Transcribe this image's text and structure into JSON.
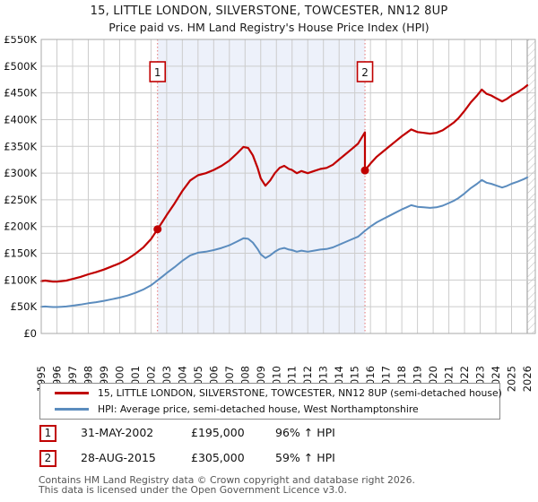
{
  "chart_data": {
    "type": "line",
    "title": "15, LITTLE LONDON, SILVERSTONE, TOWCESTER, NN12 8UP",
    "subtitle": "Price paid vs. HM Land Registry's House Price Index (HPI)",
    "x_axis": {
      "years": [
        1995,
        1996,
        1997,
        1998,
        1999,
        2000,
        2001,
        2002,
        2003,
        2004,
        2005,
        2006,
        2007,
        2008,
        2009,
        2010,
        2011,
        2012,
        2013,
        2014,
        2015,
        2016,
        2017,
        2018,
        2019,
        2020,
        2021,
        2022,
        2023,
        2024,
        2025,
        2026
      ]
    },
    "y_axis": {
      "tick_values": [
        0,
        50,
        100,
        150,
        200,
        250,
        300,
        350,
        400,
        450,
        500,
        550
      ],
      "tick_labels": [
        "£0",
        "£50K",
        "£100K",
        "£150K",
        "£200K",
        "£250K",
        "£300K",
        "£350K",
        "£400K",
        "£450K",
        "£500K",
        "£550K"
      ],
      "unit": "GBP thousands"
    },
    "grid": true,
    "legend_position": "bottom",
    "shaded_span": {
      "from": 2002.42,
      "to": 2015.65,
      "color": "#edf1fa"
    },
    "future_hatch_from": 2026,
    "series": [
      {
        "name": "15, LITTLE LONDON, SILVERSTONE, TOWCESTER, NN12 8UP (semi-detached house)",
        "color": "#c00000",
        "points": [
          [
            1995,
            98
          ],
          [
            1995.25,
            99
          ],
          [
            1995.5,
            98
          ],
          [
            1995.75,
            97
          ],
          [
            1996,
            97
          ],
          [
            1996.3,
            98
          ],
          [
            1996.6,
            99
          ],
          [
            1997,
            101.9
          ],
          [
            1997.5,
            105.8
          ],
          [
            1998,
            110.7
          ],
          [
            1998.5,
            114.7
          ],
          [
            1999,
            119.6
          ],
          [
            1999.5,
            125.4
          ],
          [
            2000,
            131.3
          ],
          [
            2000.5,
            139.2
          ],
          [
            2001,
            149
          ],
          [
            2001.5,
            160.7
          ],
          [
            2002,
            176.4
          ],
          [
            2002.42,
            195
          ],
          [
            2002.75,
            209.7
          ],
          [
            2003,
            221.5
          ],
          [
            2003.5,
            243
          ],
          [
            2004,
            266.6
          ],
          [
            2004.5,
            286.2
          ],
          [
            2005,
            296
          ],
          [
            2005.5,
            299.9
          ],
          [
            2006,
            305.8
          ],
          [
            2006.5,
            313.6
          ],
          [
            2007,
            323.4
          ],
          [
            2007.5,
            337.1
          ],
          [
            2007.9,
            348.9
          ],
          [
            2008.2,
            346.9
          ],
          [
            2008.5,
            333.2
          ],
          [
            2008.8,
            309.7
          ],
          [
            2009,
            290.1
          ],
          [
            2009.3,
            276.4
          ],
          [
            2009.6,
            286.2
          ],
          [
            2009.9,
            299.9
          ],
          [
            2010.2,
            309.7
          ],
          [
            2010.5,
            313.6
          ],
          [
            2010.8,
            307.7
          ],
          [
            2011,
            305.8
          ],
          [
            2011.3,
            299.9
          ],
          [
            2011.6,
            303.8
          ],
          [
            2012,
            299.9
          ],
          [
            2012.4,
            303.8
          ],
          [
            2012.8,
            307.7
          ],
          [
            2013.2,
            309.7
          ],
          [
            2013.6,
            315.6
          ],
          [
            2014,
            325.4
          ],
          [
            2014.4,
            335.2
          ],
          [
            2014.8,
            345
          ],
          [
            2015.2,
            354.8
          ],
          [
            2015.65,
            376.3
          ],
          [
            2015.65,
            305
          ],
          [
            2016,
            318
          ],
          [
            2016.4,
            330.7
          ],
          [
            2016.8,
            340.3
          ],
          [
            2017.2,
            349.8
          ],
          [
            2017.6,
            359.3
          ],
          [
            2018,
            368.9
          ],
          [
            2018.3,
            375.2
          ],
          [
            2018.6,
            381.6
          ],
          [
            2019,
            376.8
          ],
          [
            2019.4,
            375.2
          ],
          [
            2019.8,
            373.7
          ],
          [
            2020.2,
            375.2
          ],
          [
            2020.6,
            380
          ],
          [
            2021,
            388
          ],
          [
            2021.3,
            394.3
          ],
          [
            2021.6,
            402.3
          ],
          [
            2022,
            416.6
          ],
          [
            2022.4,
            432.5
          ],
          [
            2022.8,
            445.2
          ],
          [
            2023.1,
            456.3
          ],
          [
            2023.4,
            448.4
          ],
          [
            2023.7,
            445.2
          ],
          [
            2024,
            440.4
          ],
          [
            2024.4,
            434.1
          ],
          [
            2024.7,
            438.8
          ],
          [
            2025,
            445.2
          ],
          [
            2025.4,
            451.6
          ],
          [
            2025.8,
            459.5
          ],
          [
            2026,
            464.3
          ]
        ]
      },
      {
        "name": "HPI: Average price, semi-detached house, West Northamptonshire",
        "color": "#5b8cbe",
        "points": [
          [
            1995,
            50
          ],
          [
            1995.25,
            50.5
          ],
          [
            1995.5,
            50
          ],
          [
            1995.75,
            49.5
          ],
          [
            1996,
            49.5
          ],
          [
            1996.3,
            50
          ],
          [
            1996.6,
            50.5
          ],
          [
            1997,
            52
          ],
          [
            1997.5,
            54
          ],
          [
            1998,
            56.5
          ],
          [
            1998.5,
            58.5
          ],
          [
            1999,
            61
          ],
          [
            1999.5,
            64
          ],
          [
            2000,
            67
          ],
          [
            2000.5,
            71
          ],
          [
            2001,
            76
          ],
          [
            2001.5,
            82
          ],
          [
            2002,
            90
          ],
          [
            2002.42,
            99.5
          ],
          [
            2002.75,
            107
          ],
          [
            2003,
            113
          ],
          [
            2003.5,
            124
          ],
          [
            2004,
            136
          ],
          [
            2004.5,
            146
          ],
          [
            2005,
            151
          ],
          [
            2005.5,
            153
          ],
          [
            2006,
            156
          ],
          [
            2006.5,
            160
          ],
          [
            2007,
            165
          ],
          [
            2007.5,
            172
          ],
          [
            2007.9,
            178
          ],
          [
            2008.2,
            177
          ],
          [
            2008.5,
            170
          ],
          [
            2008.8,
            158
          ],
          [
            2009,
            148
          ],
          [
            2009.3,
            141
          ],
          [
            2009.6,
            146
          ],
          [
            2009.9,
            153
          ],
          [
            2010.2,
            158
          ],
          [
            2010.5,
            160
          ],
          [
            2010.8,
            157
          ],
          [
            2011,
            156
          ],
          [
            2011.3,
            153
          ],
          [
            2011.6,
            155
          ],
          [
            2012,
            153
          ],
          [
            2012.4,
            155
          ],
          [
            2012.8,
            157
          ],
          [
            2013.2,
            158
          ],
          [
            2013.6,
            161
          ],
          [
            2014,
            166
          ],
          [
            2014.4,
            171
          ],
          [
            2014.8,
            176
          ],
          [
            2015.2,
            181
          ],
          [
            2015.65,
            192
          ],
          [
            2016,
            200
          ],
          [
            2016.4,
            208
          ],
          [
            2016.8,
            214
          ],
          [
            2017.2,
            220
          ],
          [
            2017.6,
            226
          ],
          [
            2018,
            232
          ],
          [
            2018.3,
            236
          ],
          [
            2018.6,
            240
          ],
          [
            2019,
            237
          ],
          [
            2019.4,
            236
          ],
          [
            2019.8,
            235
          ],
          [
            2020.2,
            236
          ],
          [
            2020.6,
            239
          ],
          [
            2021,
            244
          ],
          [
            2021.3,
            248
          ],
          [
            2021.6,
            253
          ],
          [
            2022,
            262
          ],
          [
            2022.4,
            272
          ],
          [
            2022.8,
            280
          ],
          [
            2023.1,
            287
          ],
          [
            2023.4,
            282
          ],
          [
            2023.7,
            280
          ],
          [
            2024,
            277
          ],
          [
            2024.4,
            273
          ],
          [
            2024.7,
            276
          ],
          [
            2025,
            280
          ],
          [
            2025.4,
            284
          ],
          [
            2025.8,
            289
          ],
          [
            2026,
            292
          ]
        ]
      }
    ],
    "markers": [
      {
        "label": "1",
        "x": 2002.42,
        "y": 195,
        "date": "31-MAY-2002",
        "price": "£195,000",
        "vs_hpi": "96% ↑ HPI"
      },
      {
        "label": "2",
        "x": 2015.65,
        "y": 305,
        "date": "28-AUG-2015",
        "price": "£305,000",
        "vs_hpi": "59% ↑ HPI"
      }
    ],
    "colors": {
      "grid": "#cccccc",
      "axis_border": "#aaaaaa",
      "dashed_marker_line": "#e57373",
      "marker_box_border": "#c00000",
      "hatch": "#bbbbbb"
    }
  },
  "footer": {
    "line1": "Contains HM Land Registry data © Crown copyright and database right 2026.",
    "line2": "This data is licensed under the Open Government Licence v3.0."
  }
}
